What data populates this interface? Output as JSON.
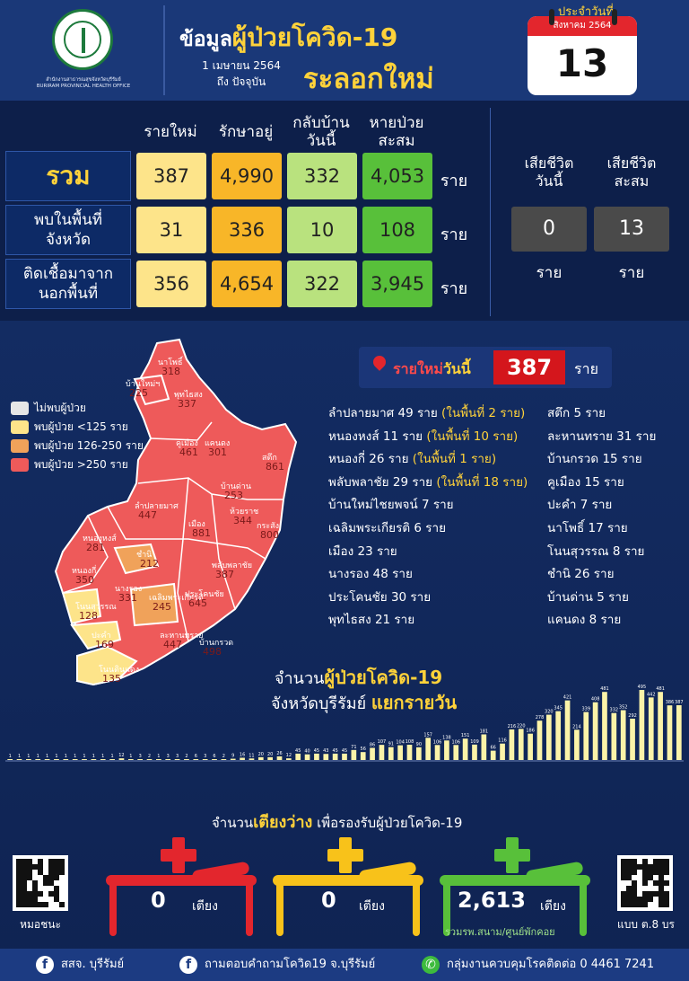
{
  "header": {
    "org_name": "สำนักงานสาธารณสุขจังหวัดบุรีรัมย์",
    "org_name_en": "BURIRAM PROVINCIAL HEALTH OFFICE",
    "title_prefix": "ข้อมูล",
    "title_hl": "ผู้ป่วย",
    "title_covid": "โควิด-19",
    "title_wave": "ระลอกใหม่",
    "date_from": "1 เมษายน 2564",
    "date_to": "ถึง ปัจจุบัน",
    "calendar_label": "ประจำวันที่",
    "calendar_month": "สิงหาคม 2564",
    "calendar_day": "13"
  },
  "stats": {
    "columns": [
      "รายใหม่",
      "รักษาอยู่",
      "กลับบ้าน\nวันนี้",
      "หายป่วย\nสะสม"
    ],
    "rows": [
      {
        "label": "รวม",
        "values": [
          "387",
          "4,990",
          "332",
          "4,053"
        ],
        "unit": "ราย"
      },
      {
        "label": "พบในพื้นที่\nจังหวัด",
        "values": [
          "31",
          "336",
          "10",
          "108"
        ],
        "unit": "ราย"
      },
      {
        "label": "ติดเชื้อมาจาก\nนอกพื้นที่",
        "values": [
          "356",
          "4,654",
          "322",
          "3,945"
        ],
        "unit": "ราย"
      }
    ],
    "deaths": [
      {
        "label": "เสียชีวิต\nวันนี้",
        "value": "0",
        "unit": "ราย"
      },
      {
        "label": "เสียชีวิต\nสะสม",
        "value": "13",
        "unit": "ราย"
      }
    ]
  },
  "legend": [
    {
      "label": "ไม่พบผู้ป่วย",
      "color": "#e6e6e6"
    },
    {
      "label": "พบผู้ป่วย <125 ราย",
      "color": "#fde48a"
    },
    {
      "label": "พบผู้ป่วย 126-250 ราย",
      "color": "#f0a25a"
    },
    {
      "label": "พบผู้ป่วย >250 ราย",
      "color": "#ee5a5a"
    }
  ],
  "map_labels": [
    {
      "name": "นาโพธิ์",
      "value": "318"
    },
    {
      "name": "บ้านใหม่ฯ",
      "value": "225"
    },
    {
      "name": "พุทไธสง",
      "value": "337"
    },
    {
      "name": "คูเมือง",
      "value": "461"
    },
    {
      "name": "แคนดง",
      "value": "301"
    },
    {
      "name": "สตึก",
      "value": "861"
    },
    {
      "name": "บ้านด่าน",
      "value": "253"
    },
    {
      "name": "ห้วยราช",
      "value": "344"
    },
    {
      "name": "กระสัง",
      "value": "800"
    },
    {
      "name": "ลำปลายมาศ",
      "value": "447"
    },
    {
      "name": "เมือง",
      "value": "881"
    },
    {
      "name": "หนองหงส์",
      "value": "281"
    },
    {
      "name": "ชำนิ",
      "value": "212"
    },
    {
      "name": "พลับพลาชัย",
      "value": "387"
    },
    {
      "name": "หนองกี่",
      "value": "350"
    },
    {
      "name": "นางรอง",
      "value": "331"
    },
    {
      "name": "โนนสุวรรณ",
      "value": "128"
    },
    {
      "name": "เฉลิมพระเกียรติ",
      "value": "245"
    },
    {
      "name": "ประโคนชัย",
      "value": "645"
    },
    {
      "name": "ปะคำ",
      "value": "169"
    },
    {
      "name": "ละหานทราย",
      "value": "447"
    },
    {
      "name": "บ้านกรวด",
      "value": "498"
    },
    {
      "name": "โนนดินแดง",
      "value": "135"
    }
  ],
  "today": {
    "label_red": "รายใหม่",
    "label": "วันนี้",
    "value": "387",
    "unit": "ราย"
  },
  "districts_left": [
    {
      "text": "ลำปลายมาศ 49 ราย",
      "note": "(ในพื้นที่ 2 ราย)"
    },
    {
      "text": "หนองหงส์ 11 ราย",
      "note": "(ในพื้นที่ 10 ราย)"
    },
    {
      "text": "หนองกี่ 26 ราย",
      "note": "(ในพื้นที่ 1 ราย)"
    },
    {
      "text": "พลับพลาชัย 29 ราย",
      "note": "(ในพื้นที่ 18 ราย)"
    },
    {
      "text": "บ้านใหม่ไชยพจน์ 7 ราย",
      "note": ""
    },
    {
      "text": "เฉลิมพระเกียรติ 6 ราย",
      "note": ""
    },
    {
      "text": "เมือง 23 ราย",
      "note": ""
    },
    {
      "text": "นางรอง 48 ราย",
      "note": ""
    },
    {
      "text": "ประโคนชัย 30 ราย",
      "note": ""
    },
    {
      "text": "พุทไธสง 21 ราย",
      "note": ""
    }
  ],
  "districts_right": [
    "สตึก 5 ราย",
    "ละหานทราย 31 ราย",
    "บ้านกรวด 15 ราย",
    "คูเมือง 15 ราย",
    "ปะคำ 7 ราย",
    "นาโพธิ์ 17 ราย",
    "โนนสุวรรณ 8 ราย",
    "ชำนิ 26 ราย",
    "บ้านด่าน 5 ราย",
    "แคนดง 8 ราย"
  ],
  "chart_title": {
    "line1_a": "จำนวน",
    "line1_hl": "ผู้ป่วยโควิด-19",
    "line2_a": "จังหวัดบุรีรัมย์ ",
    "line2_hl": "แยกรายวัน"
  },
  "chart_data": {
    "type": "bar",
    "color": "#fbf3a8",
    "values": [
      1,
      1,
      1,
      1,
      1,
      1,
      1,
      1,
      1,
      1,
      1,
      1,
      12,
      1,
      3,
      2,
      1,
      3,
      3,
      2,
      6,
      3,
      6,
      2,
      9,
      16,
      11,
      20,
      20,
      26,
      12,
      45,
      40,
      45,
      43,
      45,
      45,
      71,
      56,
      86,
      107,
      91,
      104,
      108,
      90,
      157,
      106,
      138,
      106,
      151,
      109,
      181,
      66,
      116,
      216,
      220,
      186,
      278,
      320,
      345,
      421,
      214,
      339,
      408,
      481,
      332,
      352,
      292,
      495,
      442,
      481,
      386,
      387
    ]
  },
  "beds": {
    "title_a": "จำนวน",
    "title_hl": "เตียงว่าง",
    "title_b": " เพื่อรองรับผู้ป่วยโควิด-19",
    "items": [
      {
        "value": "0",
        "unit": "เตียง",
        "color": "#e3262d"
      },
      {
        "value": "0",
        "unit": "เตียง",
        "color": "#f8c21a"
      },
      {
        "value": "2,613",
        "unit": "เตียง",
        "color": "#58c03a"
      }
    ],
    "sub": "รวมรพ.สนาม/ศูนย์พักคอย",
    "qr_left": "หมอชนะ",
    "qr_right": "แบบ ต.8 บร"
  },
  "footer": {
    "fb1": "สสจ. บุรีรัมย์",
    "fb2": "ถามตอบคำถามโควิด19 จ.บุรีรัมย์",
    "line": "กลุ่มงานควบคุมโรคติดต่อ 0 4461 7241"
  }
}
